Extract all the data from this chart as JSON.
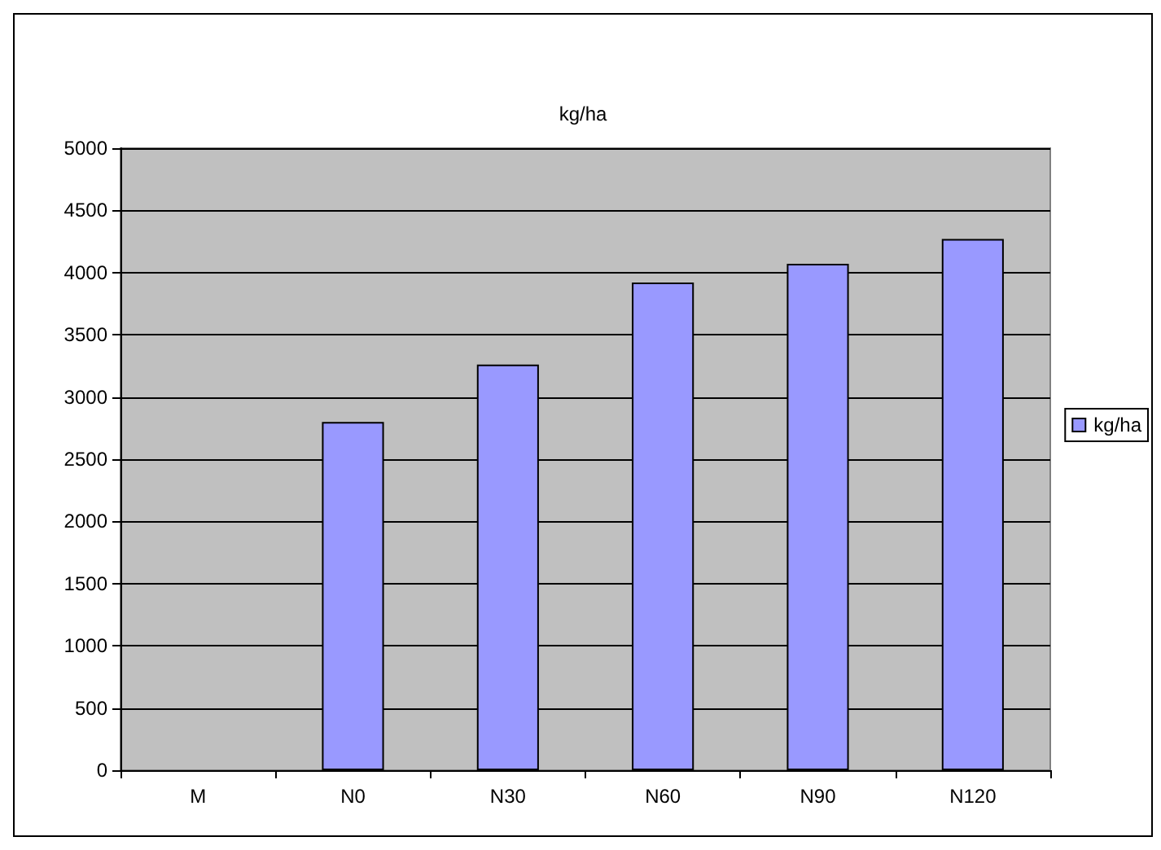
{
  "chart_data": {
    "type": "bar",
    "title": "kg/ha",
    "categories": [
      "M",
      "N0",
      "N30",
      "N60",
      "N90",
      "N120"
    ],
    "series": [
      {
        "name": "kg/ha",
        "color": "#9999ff",
        "values": [
          null,
          2800,
          3260,
          3920,
          4070,
          4270
        ]
      }
    ],
    "ylim": [
      0,
      5000
    ],
    "yticks": [
      0,
      500,
      1000,
      1500,
      2000,
      2500,
      3000,
      3500,
      4000,
      4500,
      5000
    ],
    "grid": "y",
    "legend": "right"
  }
}
